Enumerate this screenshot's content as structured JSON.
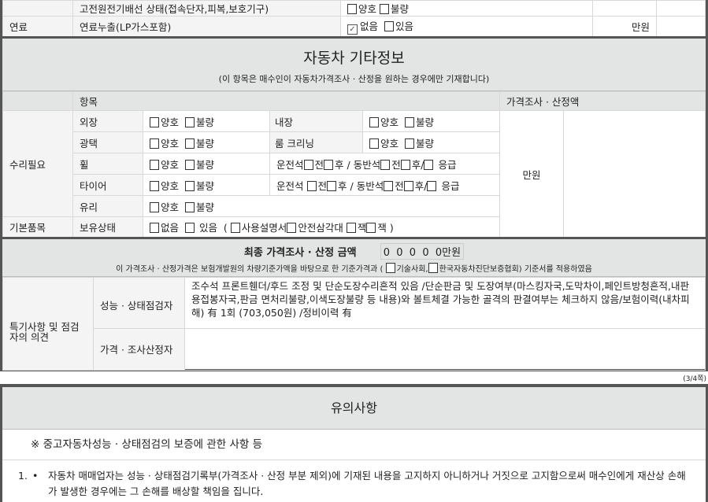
{
  "top_rows": [
    {
      "category": "",
      "item": "고전원전기배선 상태(접속단자,피복,보호기구)",
      "options": [
        "양호",
        "불량"
      ],
      "checked": [
        false,
        false
      ],
      "price": ""
    },
    {
      "category": "연료",
      "item": "연료누출(LP가스포함)",
      "options": [
        "없음",
        "있음"
      ],
      "checked": [
        true,
        false
      ],
      "price": "만원"
    }
  ],
  "other_info": {
    "title": "자동차 기타정보",
    "subtitle": "(이 항목은 매수인이 자동차가격조사 · 산정을 원하는 경우에만 기재합니다)",
    "col_item": "항목",
    "col_price": "가격조사 · 산정액",
    "price_unit": "만원",
    "repair_label": "수리필요",
    "exterior": "외장",
    "interior": "내장",
    "gloss": "광택",
    "room_cleaning": "룸 크리닝",
    "wheel": "휠",
    "tire": "타이어",
    "glass": "유리",
    "good": "양호",
    "bad": "불량",
    "seat_driver": "운전석",
    "front": "전",
    "rear": "후",
    "seat_passenger": "/ 동반석",
    "emergency": "응급",
    "slash": "/",
    "basic_label": "기본품목",
    "possession": "보유상태",
    "none": "없음",
    "have": "있음",
    "items_open": "(",
    "manual": "사용설명서",
    "triangle": "안전삼각대",
    "jack": "잭",
    "jack2": "잭",
    "items_close": ")"
  },
  "final_price": {
    "title": "최종 가격조사 · 산정 금액",
    "digits": [
      "0",
      "0",
      "0",
      "0",
      "0"
    ],
    "unit": "만원",
    "note_pre": "이 가격조사 · 산정가격은 보험개발원의 차량기준가액을 바탕으로 한 기준가격과 (",
    "opt1": "기술사회,",
    "opt2": "한국자동차진단보증협회) 기준서를 적용하였음"
  },
  "remarks": {
    "label": "특기사항 및 점검자의 의견",
    "inspector_label": "성능 · 상태점검자",
    "inspector_text": "조수석 프론트휀더/후드 조정 및 단순도장수리흔적 있음 /단순판금 및 도장여부(마스킹자국,도막차이,페인트방청흔적,내판 용접봉자국,판금 면처리불량,이색도장불량 등 내용)와 볼트체결 가능한 골격의 판결여부는 체크하지 않음/보험이력(내차피해) 有 1회 (703,050원) /정비이력 有",
    "appraiser_label": "가격 · 조사산정자",
    "appraiser_text": ""
  },
  "page_number": "(3/4쪽)",
  "notice": {
    "title": "유의사항",
    "subtitle": "※ 중고자동차성능 · 상태점검의 보증에 관한 사항 등",
    "item_number": "1.",
    "item_text": "자동차 매매업자는 성능 · 상태점검기록부(가격조사 · 산정 부분 제외)에 기재된 내용을 고지하지 아니하거나 거짓으로 고지함으로써 매수인에게 재산상 손해가 발생한 경우에는 그 손해를 배상할 책임을 집니다."
  }
}
